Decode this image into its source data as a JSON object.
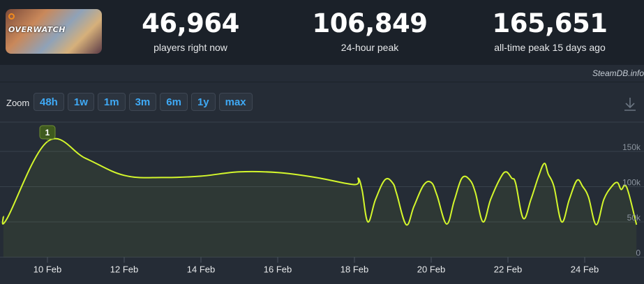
{
  "stats": [
    {
      "value": "46,964",
      "label": "players right now"
    },
    {
      "value": "106,849",
      "label": "24-hour peak"
    },
    {
      "value": "165,651",
      "label": "all-time peak 15 days ago"
    }
  ],
  "game": {
    "logo_text": "OVERWATCH"
  },
  "credit": "SteamDB.info",
  "zoom": {
    "label": "Zoom",
    "options": [
      "48h",
      "1w",
      "1m",
      "3m",
      "6m",
      "1y",
      "max"
    ]
  },
  "colors": {
    "line": "#d4f72c",
    "accent": "#3fa9f5",
    "grid": "#38414c",
    "panel": "#252c36"
  },
  "chart_data": {
    "type": "line",
    "title": "",
    "xlabel": "",
    "ylabel": "",
    "x_ticks": [
      "10 Feb",
      "12 Feb",
      "14 Feb",
      "16 Feb",
      "18 Feb",
      "20 Feb",
      "22 Feb",
      "24 Feb"
    ],
    "y_ticks": [
      "0",
      "50k",
      "100k",
      "150k"
    ],
    "ylim": [
      0,
      200000
    ],
    "grid": true,
    "annotation": {
      "label": "1",
      "x": 10.0
    },
    "series": [
      {
        "points": [
          [
            8.85,
            58000
          ],
          [
            8.95,
            55000
          ],
          [
            10.0,
            164000
          ],
          [
            11.0,
            140000
          ],
          [
            12.0,
            116000
          ],
          [
            13.0,
            113000
          ],
          [
            14.0,
            115000
          ],
          [
            15.0,
            121000
          ],
          [
            16.0,
            120000
          ],
          [
            17.0,
            113000
          ],
          [
            18.0,
            103000
          ],
          [
            18.1,
            112000
          ],
          [
            18.2,
            95000
          ],
          [
            18.35,
            50000
          ],
          [
            18.55,
            82000
          ],
          [
            18.8,
            110000
          ],
          [
            19.0,
            105000
          ],
          [
            19.1,
            90000
          ],
          [
            19.35,
            46000
          ],
          [
            19.55,
            72000
          ],
          [
            19.8,
            102000
          ],
          [
            20.0,
            106000
          ],
          [
            20.15,
            88000
          ],
          [
            20.4,
            47000
          ],
          [
            20.6,
            80000
          ],
          [
            20.8,
            112000
          ],
          [
            21.0,
            110000
          ],
          [
            21.15,
            92000
          ],
          [
            21.35,
            50000
          ],
          [
            21.55,
            82000
          ],
          [
            21.8,
            112000
          ],
          [
            21.95,
            121000
          ],
          [
            22.1,
            112000
          ],
          [
            22.2,
            105000
          ],
          [
            22.4,
            55000
          ],
          [
            22.6,
            82000
          ],
          [
            22.8,
            115000
          ],
          [
            22.95,
            133000
          ],
          [
            23.05,
            118000
          ],
          [
            23.2,
            100000
          ],
          [
            23.4,
            50000
          ],
          [
            23.6,
            82000
          ],
          [
            23.8,
            109000
          ],
          [
            23.95,
            100000
          ],
          [
            24.1,
            85000
          ],
          [
            24.3,
            46000
          ],
          [
            24.5,
            82000
          ],
          [
            24.7,
            100000
          ],
          [
            24.85,
            106000
          ],
          [
            24.95,
            96000
          ],
          [
            25.05,
            102000
          ],
          [
            25.15,
            90000
          ],
          [
            25.35,
            46000
          ]
        ]
      }
    ]
  }
}
